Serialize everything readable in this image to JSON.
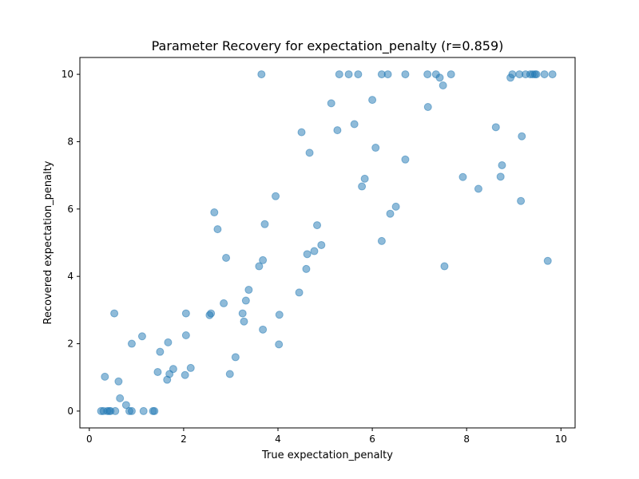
{
  "chart_data": {
    "type": "scatter",
    "title": "Parameter Recovery for expectation_penalty (r=0.859)",
    "xlabel": "True expectation_penalty",
    "ylabel": "Recovered expectation_penalty",
    "xlim": [
      -0.2,
      10.3
    ],
    "ylim": [
      -0.5,
      10.5
    ],
    "xticks": [
      0,
      2,
      4,
      6,
      8,
      10
    ],
    "yticks": [
      0,
      2,
      4,
      6,
      8,
      10
    ],
    "grid": false,
    "marker_color": "#1f77b4",
    "marker_alpha": 0.5,
    "series": [
      {
        "points": [
          [
            0.25,
            0.0
          ],
          [
            0.3,
            0.0
          ],
          [
            0.33,
            1.02
          ],
          [
            0.38,
            0.0
          ],
          [
            0.42,
            0.0
          ],
          [
            0.45,
            0.0
          ],
          [
            0.55,
            0.0
          ],
          [
            0.53,
            2.9
          ],
          [
            0.62,
            0.88
          ],
          [
            0.65,
            0.38
          ],
          [
            0.78,
            0.18
          ],
          [
            0.85,
            0.0
          ],
          [
            0.9,
            0.0
          ],
          [
            0.9,
            2.0
          ],
          [
            1.12,
            2.22
          ],
          [
            1.15,
            0.0
          ],
          [
            1.35,
            0.0
          ],
          [
            1.38,
            0.0
          ],
          [
            1.45,
            1.16
          ],
          [
            1.5,
            1.76
          ],
          [
            1.65,
            0.93
          ],
          [
            1.67,
            2.04
          ],
          [
            1.7,
            1.1
          ],
          [
            1.78,
            1.25
          ],
          [
            2.03,
            1.07
          ],
          [
            2.05,
            2.9
          ],
          [
            2.05,
            2.25
          ],
          [
            2.15,
            1.28
          ],
          [
            2.55,
            2.85
          ],
          [
            2.58,
            2.9
          ],
          [
            2.65,
            5.9
          ],
          [
            2.72,
            5.4
          ],
          [
            2.85,
            3.2
          ],
          [
            2.9,
            4.55
          ],
          [
            2.98,
            1.1
          ],
          [
            3.1,
            1.6
          ],
          [
            3.25,
            2.9
          ],
          [
            3.28,
            2.66
          ],
          [
            3.32,
            3.28
          ],
          [
            3.38,
            3.6
          ],
          [
            3.6,
            4.3
          ],
          [
            3.65,
            10.0
          ],
          [
            3.68,
            4.48
          ],
          [
            3.68,
            2.42
          ],
          [
            3.72,
            5.55
          ],
          [
            3.95,
            6.38
          ],
          [
            4.02,
            1.98
          ],
          [
            4.03,
            2.86
          ],
          [
            4.45,
            3.52
          ],
          [
            4.5,
            8.28
          ],
          [
            4.6,
            4.22
          ],
          [
            4.62,
            4.66
          ],
          [
            4.67,
            7.67
          ],
          [
            4.77,
            4.75
          ],
          [
            4.83,
            5.52
          ],
          [
            4.92,
            4.93
          ],
          [
            5.13,
            9.14
          ],
          [
            5.26,
            8.34
          ],
          [
            5.3,
            10.0
          ],
          [
            5.5,
            10.0
          ],
          [
            5.62,
            8.52
          ],
          [
            5.7,
            10.0
          ],
          [
            5.78,
            6.67
          ],
          [
            5.84,
            6.9
          ],
          [
            6.0,
            9.24
          ],
          [
            6.07,
            7.82
          ],
          [
            6.2,
            5.05
          ],
          [
            6.2,
            10.0
          ],
          [
            6.33,
            10.0
          ],
          [
            6.38,
            5.86
          ],
          [
            6.5,
            6.07
          ],
          [
            6.7,
            10.0
          ],
          [
            6.7,
            7.47
          ],
          [
            7.17,
            10.0
          ],
          [
            7.18,
            9.03
          ],
          [
            7.35,
            10.0
          ],
          [
            7.43,
            9.9
          ],
          [
            7.5,
            9.67
          ],
          [
            7.53,
            4.3
          ],
          [
            7.67,
            10.0
          ],
          [
            7.92,
            6.95
          ],
          [
            8.25,
            6.6
          ],
          [
            8.62,
            8.43
          ],
          [
            8.72,
            6.96
          ],
          [
            8.75,
            7.3
          ],
          [
            8.93,
            9.9
          ],
          [
            8.97,
            10.0
          ],
          [
            9.12,
            10.0
          ],
          [
            9.15,
            6.24
          ],
          [
            9.17,
            8.16
          ],
          [
            9.25,
            10.0
          ],
          [
            9.35,
            10.0
          ],
          [
            9.4,
            10.0
          ],
          [
            9.45,
            10.0
          ],
          [
            9.48,
            10.0
          ],
          [
            9.65,
            10.0
          ],
          [
            9.72,
            4.46
          ],
          [
            9.82,
            10.0
          ]
        ]
      }
    ]
  }
}
